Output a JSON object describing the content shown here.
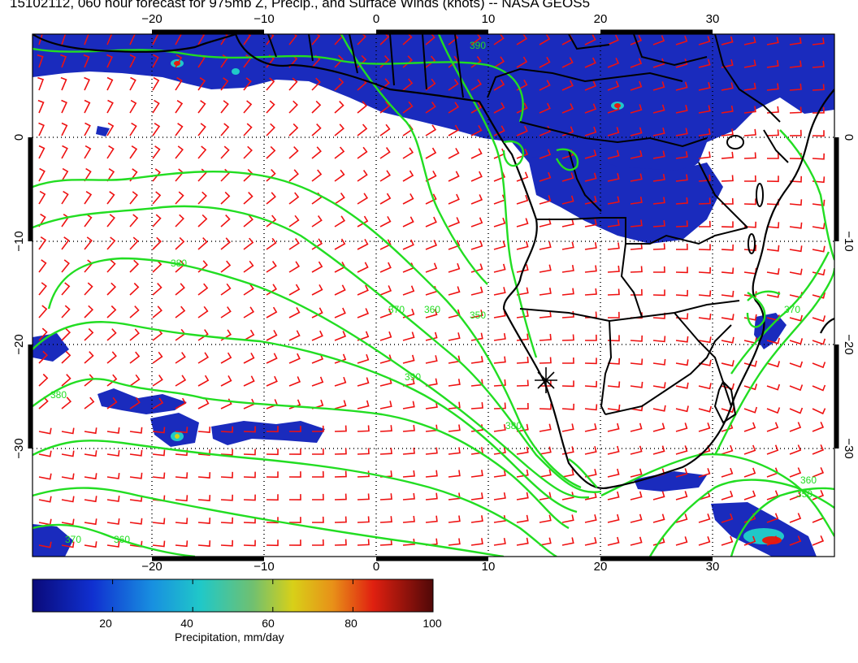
{
  "title": "15102112, 060 hour forecast for 975mb Z, Precip., and Surface Winds (knots) -- NASA GEOS5",
  "map": {
    "lon_range": [
      -30,
      42
    ],
    "lat_range": [
      -40,
      10
    ],
    "lon_ticks": [
      -20,
      -10,
      0,
      10,
      20,
      30
    ],
    "lat_ticks": [
      0,
      -10,
      -20,
      -30
    ],
    "lon_tick_labels": [
      "−20",
      "−10",
      "0",
      "10",
      "20",
      "30"
    ],
    "lat_tick_labels": [
      "0",
      "−10",
      "−20",
      "−30"
    ],
    "grid": "dotted",
    "marker": {
      "symbol": "asterisk",
      "lon": 15,
      "lat": -23.5
    },
    "contour_labels": [
      "390",
      "380",
      "370",
      "360",
      "350",
      "380",
      "390",
      "380",
      "370",
      "360",
      "350",
      "370",
      "360"
    ],
    "colors": {
      "contour": "#22dd22",
      "barb": "#ee1111",
      "coast": "#000000",
      "precip_low": "#1a2bbd"
    }
  },
  "colorbar": {
    "title": "Precipitation, mm/day",
    "ticks": [
      "20",
      "40",
      "60",
      "80",
      "100"
    ],
    "tick_values": [
      20,
      40,
      60,
      80,
      100
    ],
    "range": [
      0,
      100
    ]
  }
}
